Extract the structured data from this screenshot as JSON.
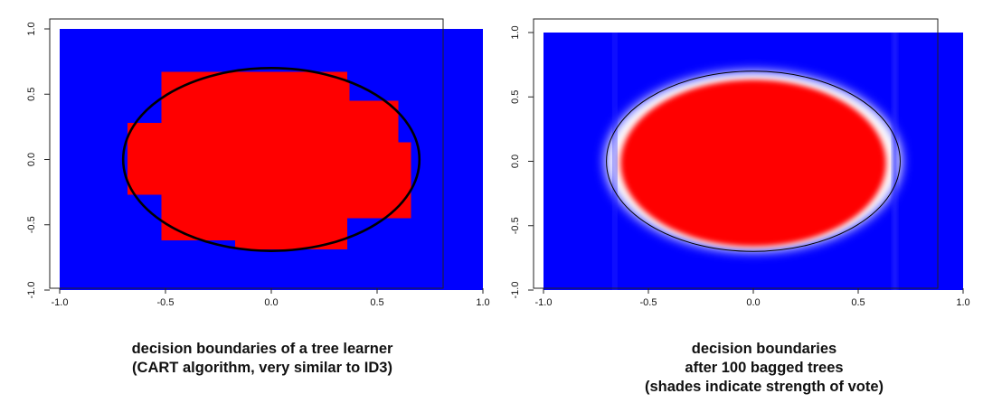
{
  "chart_data": [
    {
      "type": "heatmap",
      "title": "",
      "xlabel": "",
      "ylabel": "",
      "xlim": [
        -1.0,
        1.0
      ],
      "ylim": [
        -1.0,
        1.0
      ],
      "x_ticks": [
        "-1.0",
        "-0.5",
        "0.0",
        "0.5",
        "1.0"
      ],
      "y_ticks": [
        "-1.0",
        "-0.5",
        "0.0",
        "0.5",
        "1.0"
      ],
      "colors": {
        "class_outside": "#0000ff",
        "class_inside": "#ff0000",
        "boundary": "#000000"
      },
      "true_boundary_ellipse": {
        "center": [
          0.0,
          0.0
        ],
        "radius_x": 0.7,
        "radius_y": 0.7
      },
      "regions": [
        {
          "class": "inside",
          "x": [
            -0.52,
            0.36
          ],
          "y": [
            0.6,
            0.67
          ]
        },
        {
          "class": "inside",
          "x": [
            -0.52,
            0.37
          ],
          "y": [
            0.45,
            0.6
          ]
        },
        {
          "class": "inside",
          "x": [
            -0.52,
            0.6
          ],
          "y": [
            0.28,
            0.45
          ]
        },
        {
          "class": "inside",
          "x": [
            -0.68,
            0.6
          ],
          "y": [
            0.13,
            0.28
          ]
        },
        {
          "class": "inside",
          "x": [
            -0.68,
            0.66
          ],
          "y": [
            -0.27,
            0.13
          ]
        },
        {
          "class": "inside",
          "x": [
            -0.52,
            0.66
          ],
          "y": [
            -0.45,
            -0.27
          ]
        },
        {
          "class": "inside",
          "x": [
            -0.52,
            0.36
          ],
          "y": [
            -0.62,
            -0.45
          ]
        },
        {
          "class": "inside",
          "x": [
            -0.17,
            0.36
          ],
          "y": [
            -0.69,
            -0.62
          ]
        }
      ],
      "caption": [
        "decision boundaries of a tree learner",
        "(CART algorithm, very similar to ID3)"
      ]
    },
    {
      "type": "heatmap",
      "title": "",
      "xlabel": "",
      "ylabel": "",
      "xlim": [
        -1.0,
        1.0
      ],
      "ylim": [
        -1.0,
        1.0
      ],
      "x_ticks": [
        "-1.0",
        "-0.5",
        "0.0",
        "0.5",
        "1.0"
      ],
      "y_ticks": [
        "-1.0",
        "-0.5",
        "0.0",
        "0.5",
        "1.0"
      ],
      "colors": {
        "class_outside": "#0000ff",
        "class_inside": "#ff0000",
        "boundary": "#000000"
      },
      "true_boundary_ellipse": {
        "center": [
          0.0,
          0.0
        ],
        "radius_x": 0.7,
        "radius_y": 0.7
      },
      "vote_shading": "red = all trees vote inside, white = split vote, blue = all trees vote outside",
      "caption": [
        "decision boundaries",
        "after 100 bagged trees",
        "(shades indicate strength of vote)"
      ]
    }
  ]
}
